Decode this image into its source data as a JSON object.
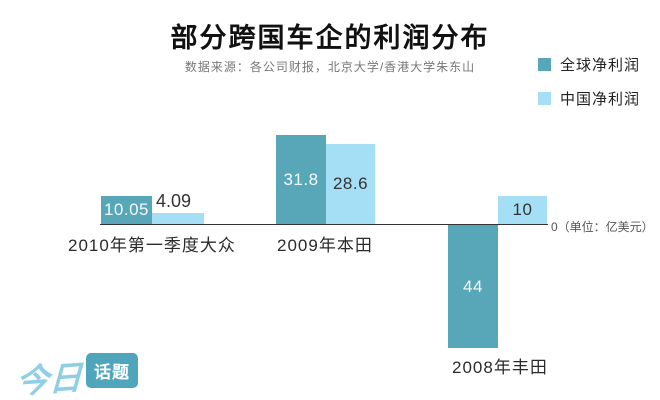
{
  "header": {
    "title": "部分跨国车企的利润分布",
    "subtitle": "数据来源：各公司财报，北京大学/香港大学朱东山"
  },
  "legend": {
    "items": [
      {
        "label": "全球净利润",
        "color": "#58A7B9"
      },
      {
        "label": "中国净利润",
        "color": "#A5DFF6"
      }
    ]
  },
  "axis": {
    "zero_label": "0（单位：亿美元）"
  },
  "colors": {
    "global_bar": "#58A7B9",
    "china_bar": "#A5DFF6",
    "axis_line": "#333333",
    "logo_text": "#8ECFE5",
    "logo_bubble": "#4FA6BC"
  },
  "logo": {
    "text_light": "今日",
    "text_bubble": "话题"
  },
  "chart_data": {
    "type": "bar",
    "title": "部分跨国车企的利润分布",
    "unit": "亿美元",
    "categories": [
      "2010年第一季度大众",
      "2009年本田",
      "2008年丰田"
    ],
    "series": [
      {
        "name": "全球净利润",
        "color": "#58A7B9",
        "values": [
          10.05,
          31.8,
          -44
        ]
      },
      {
        "name": "中国净利润",
        "color": "#A5DFF6",
        "values": [
          4.09,
          28.6,
          10
        ]
      }
    ],
    "value_labels": [
      [
        "10.05",
        "4.09"
      ],
      [
        "31.8",
        "28.6"
      ],
      [
        "44",
        "10"
      ]
    ],
    "baseline": 0,
    "grid": false,
    "legend_position": "top-right"
  }
}
